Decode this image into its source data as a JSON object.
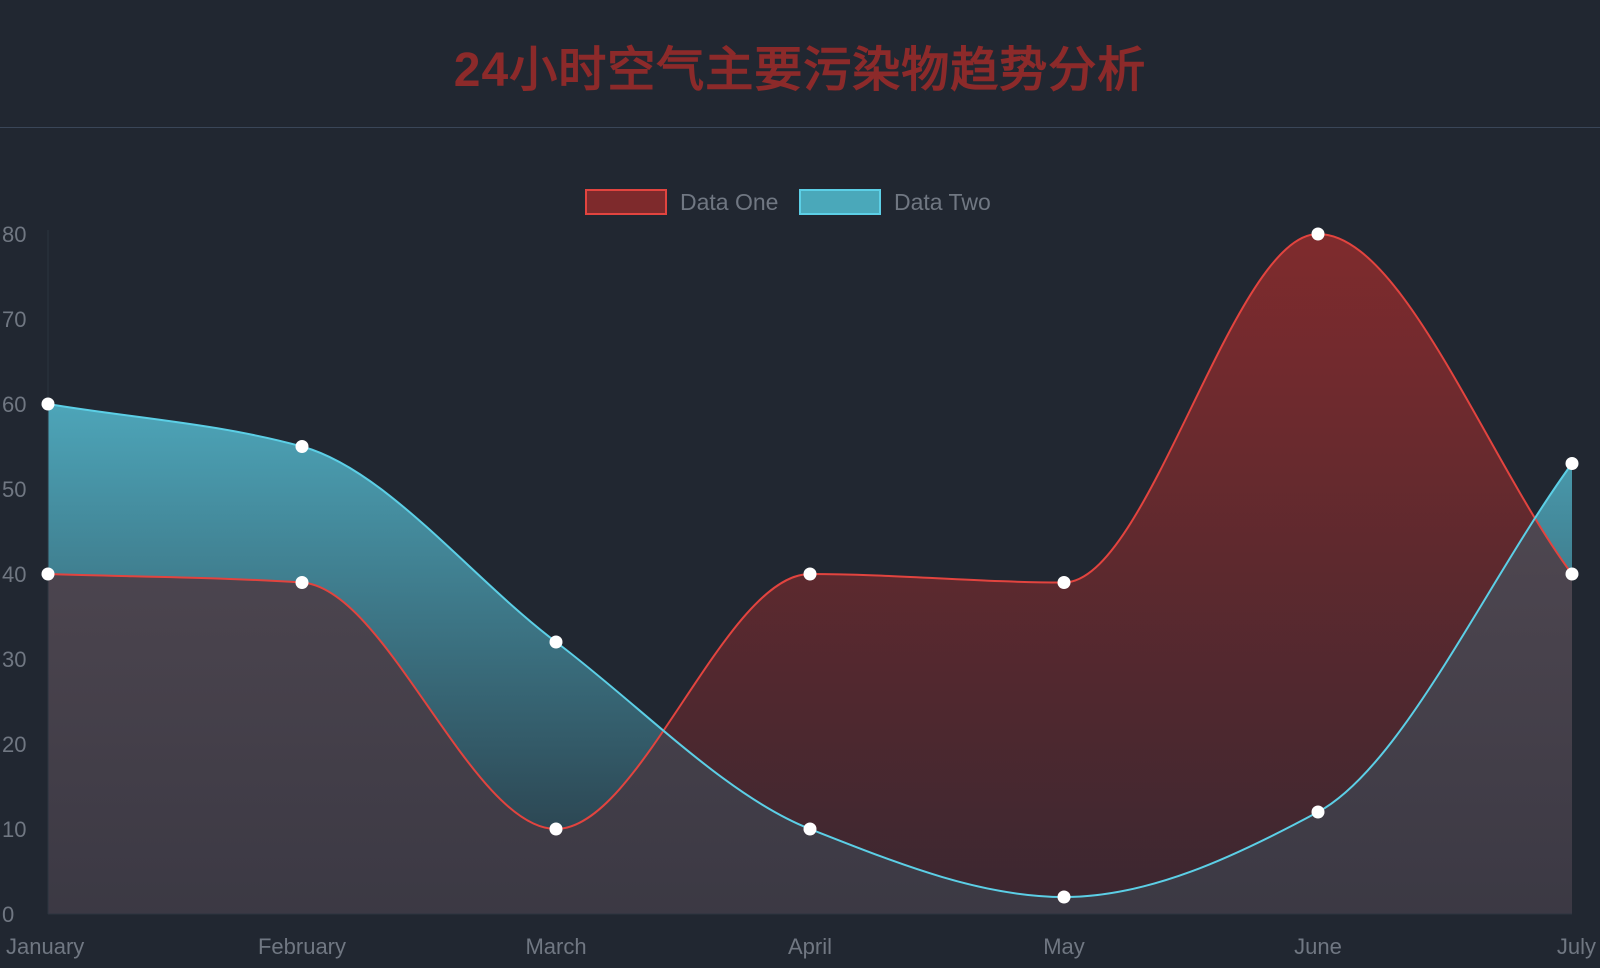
{
  "title": "24小时空气主要污染物趋势分析",
  "chart_data": {
    "type": "area",
    "categories": [
      "January",
      "February",
      "March",
      "April",
      "May",
      "June",
      "July"
    ],
    "series": [
      {
        "name": "Data One",
        "values": [
          40,
          39,
          10,
          40,
          39,
          80,
          40
        ],
        "color": "#e2443f",
        "fill": "#7e2a2c"
      },
      {
        "name": "Data Two",
        "values": [
          60,
          55,
          32,
          10,
          2,
          12,
          53
        ],
        "color": "#5ccfe6",
        "fill": "#4aa8ba"
      }
    ],
    "yticks": [
      0,
      10,
      20,
      30,
      40,
      50,
      60,
      70,
      80
    ],
    "ylim": [
      0,
      80
    ],
    "legend_position": "top-center",
    "grid": false,
    "smooth": true
  }
}
